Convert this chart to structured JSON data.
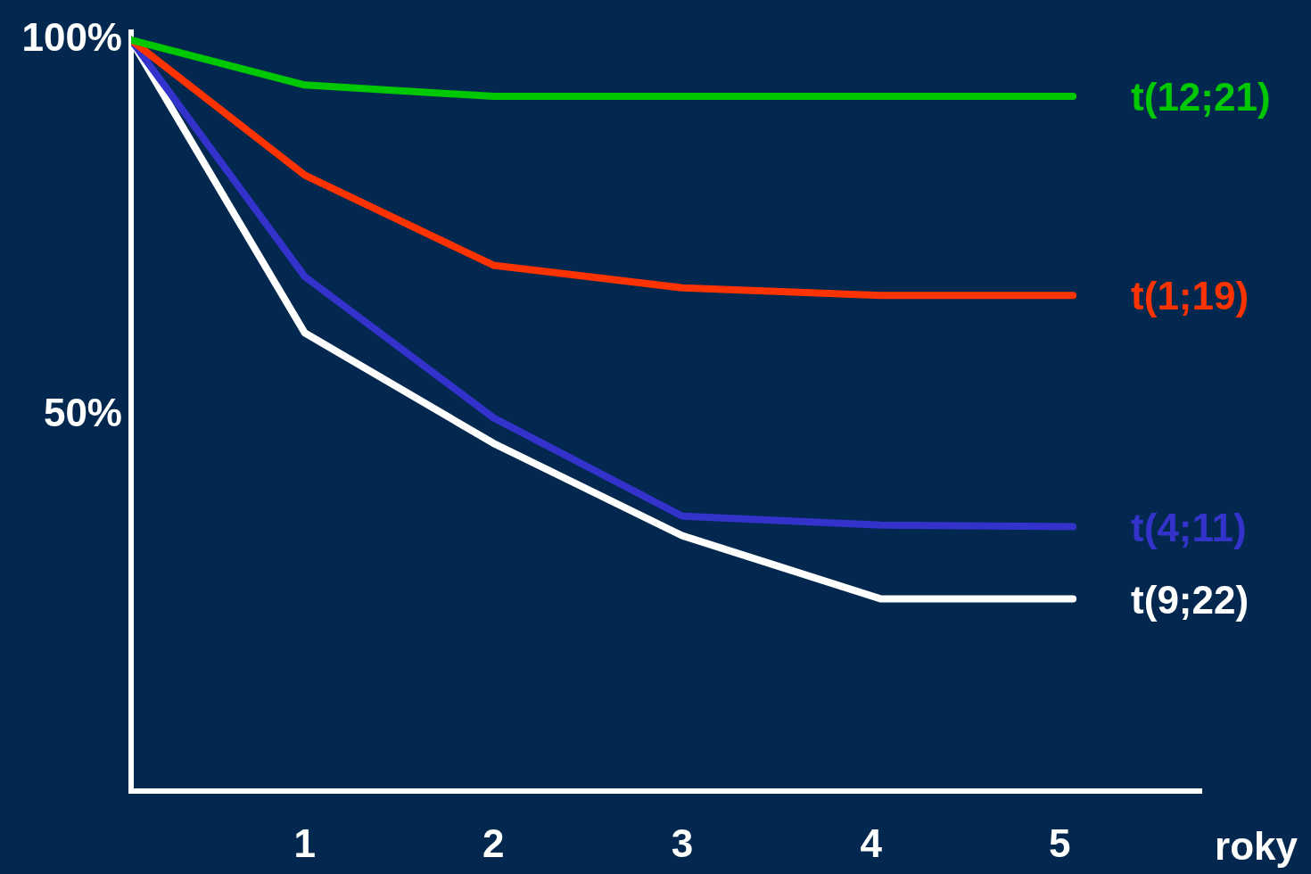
{
  "chart_data": {
    "type": "line",
    "xlabel": "roky",
    "xlim": [
      0.08,
      5.75
    ],
    "xticks": [
      1,
      2,
      3,
      4,
      5
    ],
    "ylim": [
      0,
      101
    ],
    "yticks": [
      {
        "value": 100,
        "label": "100%"
      },
      {
        "value": 50,
        "label": "50%"
      }
    ],
    "grid": false,
    "x": [
      0.08,
      1,
      2,
      3,
      4.05,
      5.07
    ],
    "series": [
      {
        "name": "t(12;21)",
        "color": "#00c800",
        "values": [
          100,
          94,
          92.5,
          92.5,
          92.5,
          92.5
        ]
      },
      {
        "name": "t(1;19)",
        "color": "#ff3300",
        "values": [
          100,
          82,
          70,
          67,
          66,
          66
        ]
      },
      {
        "name": "t(4;11)",
        "color": "#3333cc",
        "values": [
          100,
          68.5,
          49.7,
          36.6,
          35.4,
          35.2
        ]
      },
      {
        "name": "t(9;22)",
        "color": "#ffffff",
        "values": [
          100,
          61,
          46.3,
          34,
          25.6,
          25.6
        ]
      }
    ]
  }
}
